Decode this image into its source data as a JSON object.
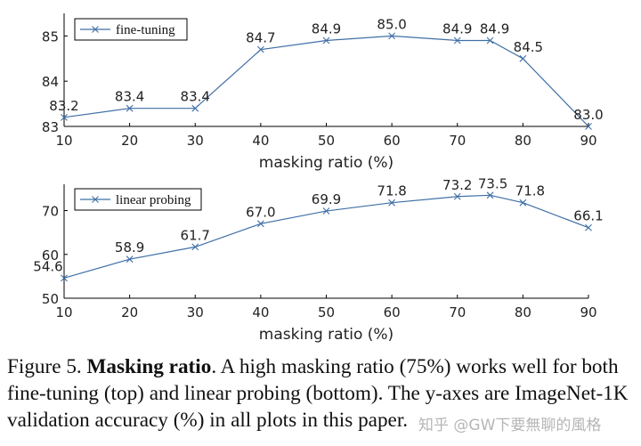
{
  "chart_data": [
    {
      "type": "line",
      "legend": "fine-tuning",
      "legend_position": "top-left",
      "x": [
        10,
        20,
        30,
        40,
        50,
        60,
        70,
        75,
        80,
        90
      ],
      "values": [
        83.2,
        83.4,
        83.4,
        84.7,
        84.9,
        85.0,
        84.9,
        84.9,
        84.5,
        83.0
      ],
      "labels": [
        "83.2",
        "83.4",
        "83.4",
        "84.7",
        "84.9",
        "85.0",
        "84.9",
        "84.9",
        "84.5",
        "83.0"
      ],
      "xticks": [
        "10",
        "20",
        "30",
        "40",
        "50",
        "60",
        "70",
        "80",
        "90"
      ],
      "yticks": [
        "83",
        "84",
        "85"
      ],
      "xlabel": "masking ratio (%)",
      "xlim": [
        10,
        90
      ],
      "ylim": [
        83,
        85.5
      ],
      "marker": "x",
      "color": "#3f6fa6"
    },
    {
      "type": "line",
      "legend": "linear probing",
      "legend_position": "top-left",
      "x": [
        10,
        20,
        30,
        40,
        50,
        60,
        70,
        75,
        80,
        90
      ],
      "values": [
        54.6,
        58.9,
        61.7,
        67.0,
        69.9,
        71.8,
        73.2,
        73.5,
        71.8,
        66.1
      ],
      "labels": [
        "54.6",
        "58.9",
        "61.7",
        "67.0",
        "69.9",
        "71.8",
        "73.2",
        "73.5",
        "71.8",
        "66.1"
      ],
      "xticks": [
        "10",
        "20",
        "30",
        "40",
        "50",
        "60",
        "70",
        "80",
        "90"
      ],
      "yticks": [
        "50",
        "60",
        "70"
      ],
      "xlabel": "masking ratio (%)",
      "xlim": [
        10,
        90
      ],
      "ylim": [
        50,
        76
      ],
      "marker": "x",
      "color": "#3f6fa6"
    }
  ],
  "caption": {
    "prefix": "Figure 5. ",
    "title": "Masking ratio",
    "body": ". A high masking ratio (75%) works well for both fine-tuning (top) and linear probing (bottom). The y-axes are ImageNet-1K validation accuracy (%) in all plots in this paper."
  },
  "watermark": "知乎 @GW下要無聊的風格"
}
